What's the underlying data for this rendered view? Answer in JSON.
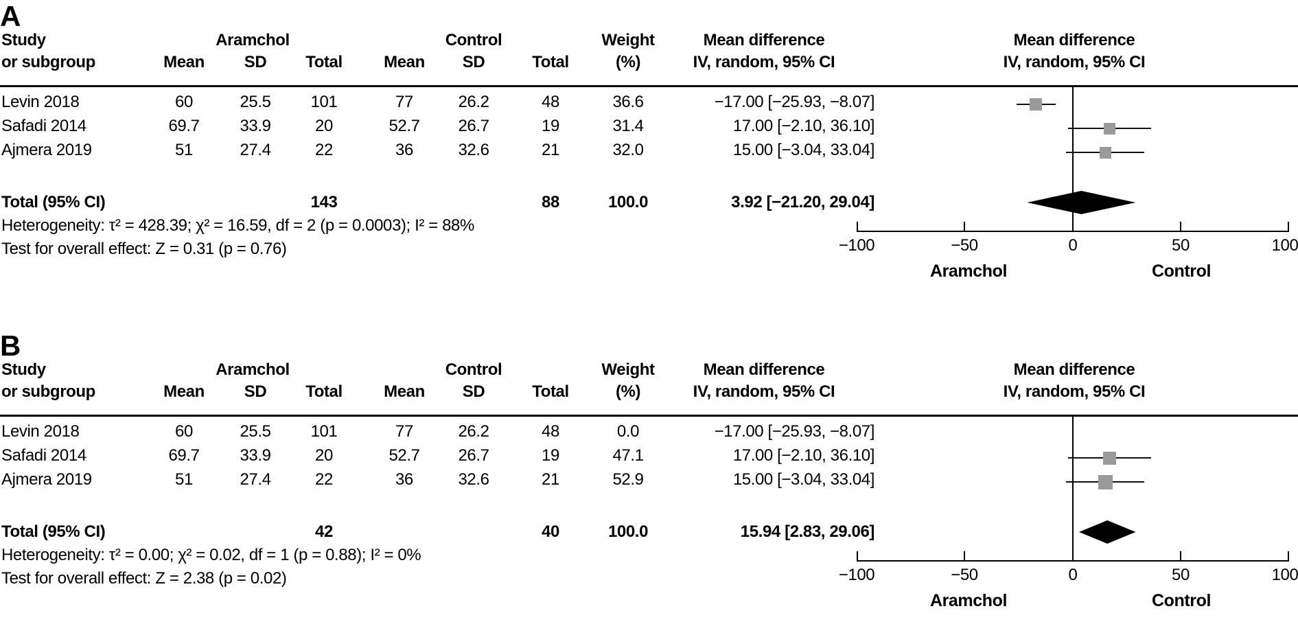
{
  "figure": {
    "panels": [
      {
        "label": "A",
        "header": {
          "study_line1": "Study",
          "study_line2": "or subgroup",
          "group1": "Aramchol",
          "group2": "Control",
          "mean1": "Mean",
          "sd1": "SD",
          "total1": "Total",
          "mean2": "Mean",
          "sd2": "SD",
          "total2": "Total",
          "weight_line1": "Weight",
          "weight_line2": "(%)",
          "md_line1": "Mean difference",
          "md_line2": "IV, random, 95% CI",
          "plot_line1": "Mean difference",
          "plot_line2": "IV, random, 95% CI"
        },
        "rows": [
          {
            "study": "Levin 2018",
            "mean1": "60",
            "sd1": "25.5",
            "total1": "101",
            "mean2": "77",
            "sd2": "26.2",
            "total2": "48",
            "weight": "36.6",
            "md": "−17.00 [−25.93, −8.07]"
          },
          {
            "study": "Safadi 2014",
            "mean1": "69.7",
            "sd1": "33.9",
            "total1": "20",
            "mean2": "52.7",
            "sd2": "26.7",
            "total2": "19",
            "weight": "31.4",
            "md": "17.00 [−2.10, 36.10]"
          },
          {
            "study": "Ajmera 2019",
            "mean1": "51",
            "sd1": "27.4",
            "total1": "22",
            "mean2": "36",
            "sd2": "32.6",
            "total2": "21",
            "weight": "32.0",
            "md": "15.00 [−3.04, 33.04]"
          }
        ],
        "total_row": {
          "label": "Total (95% CI)",
          "total1": "143",
          "total2": "88",
          "weight": "100.0",
          "md": "3.92 [−21.20, 29.04]"
        },
        "heterogeneity": "Heterogeneity: τ² = 428.39; χ² = 16.59, df = 2 (p = 0.0003); I² = 88%",
        "overall_effect": "Test for overall effect: Z = 0.31 (p = 0.76)",
        "axis": {
          "ticks": [
            "−100",
            "−50",
            "0",
            "50",
            "100"
          ],
          "left_group": "Aramchol",
          "right_group": "Control"
        }
      },
      {
        "label": "B",
        "header": {
          "study_line1": "Study",
          "study_line2": "or subgroup",
          "group1": "Aramchol",
          "group2": "Control",
          "mean1": "Mean",
          "sd1": "SD",
          "total1": "Total",
          "mean2": "Mean",
          "sd2": "SD",
          "total2": "Total",
          "weight_line1": "Weight",
          "weight_line2": "(%)",
          "md_line1": "Mean difference",
          "md_line2": "IV, random, 95% CI",
          "plot_line1": "Mean difference",
          "plot_line2": "IV, random, 95% CI"
        },
        "rows": [
          {
            "study": "Levin 2018",
            "mean1": "60",
            "sd1": "25.5",
            "total1": "101",
            "mean2": "77",
            "sd2": "26.2",
            "total2": "48",
            "weight": "0.0",
            "md": "−17.00 [−25.93, −8.07]"
          },
          {
            "study": "Safadi 2014",
            "mean1": "69.7",
            "sd1": "33.9",
            "total1": "20",
            "mean2": "52.7",
            "sd2": "26.7",
            "total2": "19",
            "weight": "47.1",
            "md": "17.00 [−2.10, 36.10]"
          },
          {
            "study": "Ajmera 2019",
            "mean1": "51",
            "sd1": "27.4",
            "total1": "22",
            "mean2": "36",
            "sd2": "32.6",
            "total2": "21",
            "weight": "52.9",
            "md": "15.00 [−3.04, 33.04]"
          }
        ],
        "total_row": {
          "label": "Total (95% CI)",
          "total1": "42",
          "total2": "40",
          "weight": "100.0",
          "md": "15.94 [2.83, 29.06]"
        },
        "heterogeneity": "Heterogeneity: τ² = 0.00; χ² = 0.02, df = 1 (p = 0.88); I² = 0%",
        "overall_effect": "Test for overall effect: Z = 2.38 (p = 0.02)",
        "axis": {
          "ticks": [
            "−100",
            "−50",
            "0",
            "50",
            "100"
          ],
          "left_group": "Aramchol",
          "right_group": "Control"
        }
      }
    ]
  },
  "chart_data": [
    {
      "type": "forest",
      "panel": "A",
      "effect_measure": "Mean difference, IV, random, 95% CI",
      "x_range": [
        -100,
        100
      ],
      "x_ticks": [
        -100,
        -50,
        0,
        50,
        100
      ],
      "favours_left": "Aramchol",
      "favours_right": "Control",
      "studies": [
        {
          "name": "Levin 2018",
          "aramchol": {
            "mean": 60,
            "sd": 25.5,
            "total": 101
          },
          "control": {
            "mean": 77,
            "sd": 26.2,
            "total": 48
          },
          "weight_pct": 36.6,
          "md": -17.0,
          "ci": [
            -25.93,
            -8.07
          ]
        },
        {
          "name": "Safadi 2014",
          "aramchol": {
            "mean": 69.7,
            "sd": 33.9,
            "total": 20
          },
          "control": {
            "mean": 52.7,
            "sd": 26.7,
            "total": 19
          },
          "weight_pct": 31.4,
          "md": 17.0,
          "ci": [
            -2.1,
            36.1
          ]
        },
        {
          "name": "Ajmera 2019",
          "aramchol": {
            "mean": 51,
            "sd": 27.4,
            "total": 22
          },
          "control": {
            "mean": 36,
            "sd": 32.6,
            "total": 21
          },
          "weight_pct": 32.0,
          "md": 15.0,
          "ci": [
            -3.04,
            33.04
          ]
        }
      ],
      "total": {
        "aramchol_total": 143,
        "control_total": 88,
        "weight_pct": 100.0,
        "md": 3.92,
        "ci": [
          -21.2,
          29.04
        ]
      },
      "heterogeneity": {
        "tau2": 428.39,
        "chi2": 16.59,
        "df": 2,
        "p": 0.0003,
        "I2_pct": 88
      },
      "overall_effect": {
        "Z": 0.31,
        "p": 0.76
      }
    },
    {
      "type": "forest",
      "panel": "B",
      "effect_measure": "Mean difference, IV, random, 95% CI",
      "x_range": [
        -100,
        100
      ],
      "x_ticks": [
        -100,
        -50,
        0,
        50,
        100
      ],
      "favours_left": "Aramchol",
      "favours_right": "Control",
      "studies": [
        {
          "name": "Levin 2018",
          "aramchol": {
            "mean": 60,
            "sd": 25.5,
            "total": 101
          },
          "control": {
            "mean": 77,
            "sd": 26.2,
            "total": 48
          },
          "weight_pct": 0.0,
          "md": -17.0,
          "ci": [
            -25.93,
            -8.07
          ]
        },
        {
          "name": "Safadi 2014",
          "aramchol": {
            "mean": 69.7,
            "sd": 33.9,
            "total": 20
          },
          "control": {
            "mean": 52.7,
            "sd": 26.7,
            "total": 19
          },
          "weight_pct": 47.1,
          "md": 17.0,
          "ci": [
            -2.1,
            36.1
          ]
        },
        {
          "name": "Ajmera 2019",
          "aramchol": {
            "mean": 51,
            "sd": 27.4,
            "total": 22
          },
          "control": {
            "mean": 36,
            "sd": 32.6,
            "total": 21
          },
          "weight_pct": 52.9,
          "md": 15.0,
          "ci": [
            -3.04,
            33.04
          ]
        }
      ],
      "total": {
        "aramchol_total": 42,
        "control_total": 40,
        "weight_pct": 100.0,
        "md": 15.94,
        "ci": [
          2.83,
          29.06
        ]
      },
      "heterogeneity": {
        "tau2": 0.0,
        "chi2": 0.02,
        "df": 1,
        "p": 0.88,
        "I2_pct": 0
      },
      "overall_effect": {
        "Z": 2.38,
        "p": 0.02
      }
    }
  ],
  "style": {
    "marker_color": "#9a9a9a",
    "line_color": "#111111",
    "diamond_color": "#000000"
  }
}
